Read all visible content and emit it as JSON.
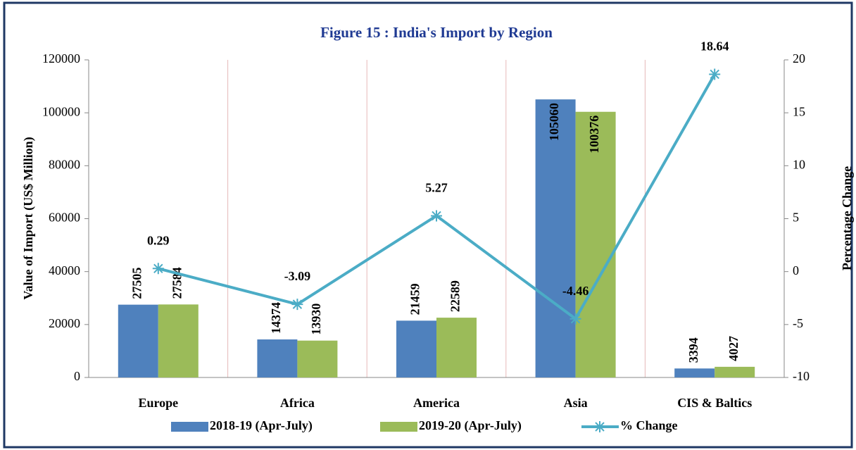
{
  "chart_data": {
    "type": "bar",
    "title": "Figure 15 : India's Import by Region",
    "y_label": "Value of Import (US$ Million)",
    "y2_label": "Percentage Change",
    "categories": [
      "Europe",
      "Africa",
      "America",
      "Asia",
      "CIS & Baltics"
    ],
    "series": [
      {
        "name": "2018-19 (Apr-July)",
        "type": "bar",
        "color": "#4f81bd",
        "values": [
          27505,
          14374,
          21459,
          105060,
          3394
        ]
      },
      {
        "name": "2019-20 (Apr-July)",
        "type": "bar",
        "color": "#9bbb59",
        "values": [
          27584,
          13930,
          22589,
          100376,
          4027
        ]
      },
      {
        "name": "% Change",
        "type": "line",
        "axis": "y2",
        "color": "#4bacc6",
        "values": [
          0.29,
          -3.09,
          5.27,
          -4.46,
          18.64
        ]
      }
    ],
    "ylim": [
      0,
      120000
    ],
    "yticks": [
      0,
      20000,
      40000,
      60000,
      80000,
      100000,
      120000
    ],
    "y2lim": [
      -10,
      20
    ],
    "y2ticks": [
      -10,
      -5,
      0,
      5,
      10,
      15,
      20
    ],
    "legend": "bottom"
  }
}
